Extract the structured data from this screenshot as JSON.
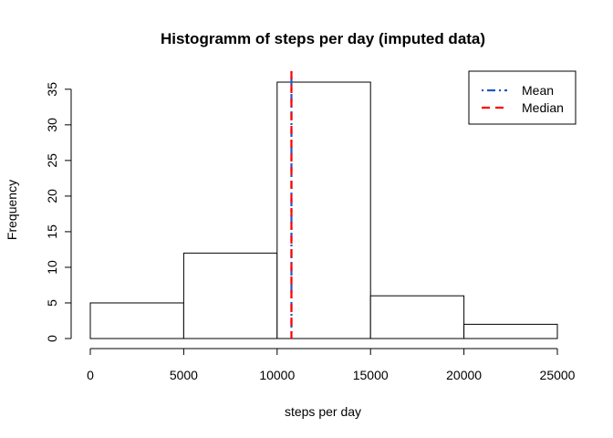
{
  "chart_data": {
    "type": "bar",
    "title": "Histogramm of steps per day (imputed data)",
    "xlabel": "steps per day",
    "ylabel": "Frequency",
    "bins": [
      {
        "from": 0,
        "to": 5000,
        "count": 5
      },
      {
        "from": 5000,
        "to": 10000,
        "count": 12
      },
      {
        "from": 10000,
        "to": 15000,
        "count": 36
      },
      {
        "from": 15000,
        "to": 20000,
        "count": 6
      },
      {
        "from": 20000,
        "to": 25000,
        "count": 2
      }
    ],
    "xlim": [
      0,
      25000
    ],
    "ylim": [
      0,
      36
    ],
    "x_ticks": [
      0,
      5000,
      10000,
      15000,
      20000,
      25000
    ],
    "y_ticks": [
      0,
      5,
      10,
      15,
      20,
      25,
      30,
      35
    ],
    "bar_fill": "#ffffff",
    "bar_stroke": "#000000",
    "grid": false,
    "reference_lines": [
      {
        "name": "Mean",
        "value": 10766,
        "color": "#2255cc",
        "style": "dotdash"
      },
      {
        "name": "Median",
        "value": 10766,
        "color": "#ff0000",
        "style": "dashed"
      }
    ],
    "legend_position": "top-right"
  }
}
